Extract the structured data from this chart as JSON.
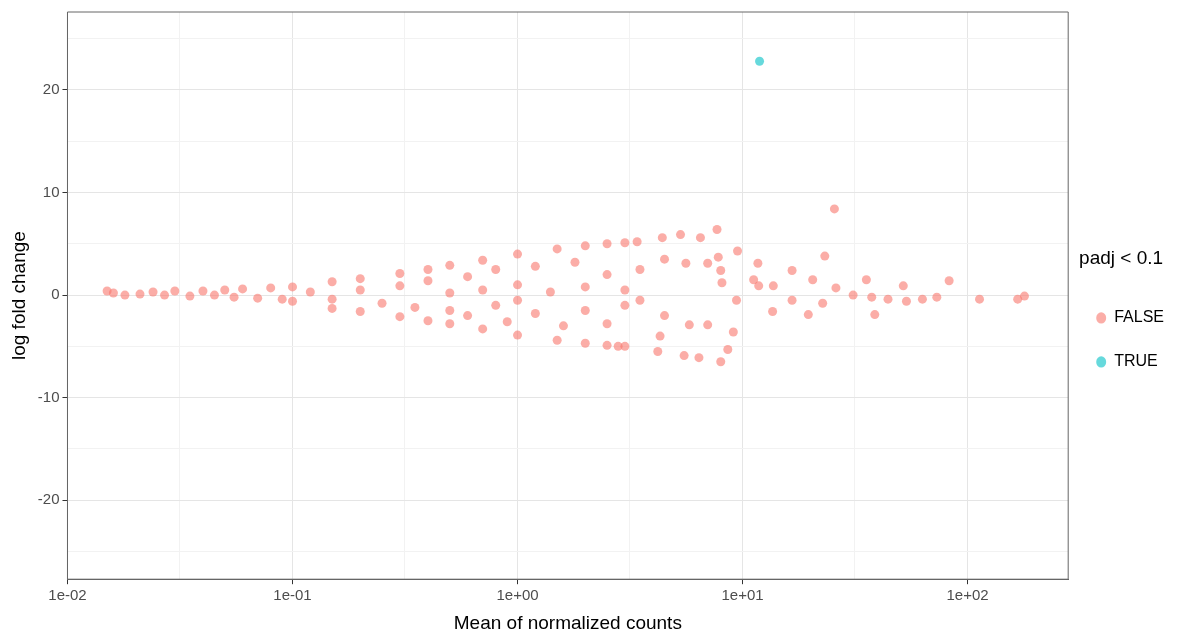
{
  "chart_data": {
    "type": "scatter",
    "xlabel": "Mean of normalized counts",
    "ylabel": "log fold change",
    "legend_title": "padj < 0.1",
    "legend": "right",
    "grid": true,
    "marker": "circle",
    "log": "x",
    "xlim": [
      0.01,
      280
    ],
    "ylim": [
      -27.7,
      27.6
    ],
    "xticks": [
      {
        "value": 0.01,
        "label": "1e-02"
      },
      {
        "value": 0.0316,
        "label": null
      },
      {
        "value": 0.1,
        "label": "1e-01"
      },
      {
        "value": 0.316,
        "label": null
      },
      {
        "value": 1,
        "label": "1e+00"
      },
      {
        "value": 3.16,
        "label": null
      },
      {
        "value": 10,
        "label": "1e+01"
      },
      {
        "value": 31.6,
        "label": null
      },
      {
        "value": 100,
        "label": "1e+02"
      }
    ],
    "yticks": [
      {
        "value": -25,
        "label": null
      },
      -20,
      {
        "value": -15,
        "label": null
      },
      -10,
      {
        "value": -5,
        "label": null
      },
      0,
      {
        "value": 5,
        "label": null
      },
      10,
      {
        "value": 15,
        "label": null
      },
      20,
      {
        "value": 25,
        "label": null
      }
    ],
    "series": [
      {
        "name": "FALSE",
        "color": "#f8766d",
        "x": [
          0.015,
          0.016,
          0.018,
          0.021,
          0.024,
          0.027,
          0.03,
          0.035,
          0.04,
          0.045,
          0.05,
          0.055,
          0.06,
          0.07,
          0.08,
          0.09,
          0.1,
          0.1,
          0.15,
          0.2,
          0.3,
          0.4,
          0.5,
          0.7,
          1,
          1.5,
          2,
          2.5,
          3,
          0.15,
          0.2,
          0.3,
          0.4,
          0.5,
          0.7,
          1,
          1.5,
          2,
          2.5,
          3,
          0.12,
          0.15,
          0.2,
          0.25,
          0.3,
          0.35,
          0.4,
          0.5,
          0.5,
          0.6,
          0.6,
          0.7,
          0.8,
          0.8,
          0.9,
          1,
          1,
          1.2,
          1.2,
          1.4,
          1.6,
          1.8,
          2,
          2,
          2.5,
          2.5,
          3,
          3,
          3.5,
          3.5,
          25.6,
          23.2,
          7.7,
          5.3,
          4.4,
          6.5,
          3.4,
          9.5,
          11.7,
          7.8,
          4.5,
          35.5,
          82.8,
          51.8,
          38.7,
          113,
          179,
          167,
          73,
          63,
          53.5,
          44.3,
          37.5,
          31,
          26,
          22.7,
          19.6,
          20.5,
          16.6,
          13.7,
          13.6,
          9.1,
          8.6,
          8.0,
          6.4,
          5.5,
          4.2,
          4.3,
          2.8,
          5.8,
          7.0,
          4.5,
          8.1,
          9.4,
          5.6,
          7.0,
          8.0,
          16.6,
          11.2,
          11.8
        ],
        "values": [
          0.4,
          0.2,
          0,
          0.1,
          0.3,
          0,
          0.4,
          -0.1,
          0.4,
          0,
          0.5,
          -0.2,
          0.6,
          -0.3,
          0.7,
          -0.4,
          0.8,
          -0.6,
          1.3,
          1.6,
          2.1,
          2.5,
          2.9,
          3.4,
          4,
          4.5,
          4.8,
          5,
          5.1,
          -1.3,
          -1.6,
          -2.1,
          -2.5,
          -2.8,
          -3.3,
          -3.9,
          -4.4,
          -4.7,
          -4.9,
          -5,
          0.3,
          -0.4,
          0.5,
          -0.8,
          0.9,
          -1.2,
          1.4,
          -1.5,
          0.2,
          1.8,
          -2,
          0.5,
          -1,
          2.5,
          -2.6,
          1,
          -0.5,
          2.8,
          -1.8,
          0.3,
          -3,
          3.2,
          0.8,
          -1.5,
          2,
          -2.8,
          0.5,
          -1,
          2.5,
          -0.5,
          8.4,
          3.8,
          6.4,
          5.9,
          5.6,
          5.6,
          5.2,
          4.3,
          3.1,
          3.7,
          3.5,
          1.5,
          1.4,
          0.9,
          -1.9,
          -0.4,
          -0.1,
          -0.4,
          -0.2,
          -0.4,
          -0.6,
          -0.4,
          -0.2,
          0,
          0.7,
          -0.8,
          -1.9,
          1.5,
          2.4,
          0.9,
          -1.6,
          -3.6,
          -5.3,
          -6.5,
          -6.1,
          -5.9,
          -5.5,
          -4.0,
          -5.0,
          -2.9,
          -2.9,
          -2.0,
          1.2,
          -0.5,
          3.1,
          3.1,
          2.4,
          -0.5,
          1.5,
          0.9
        ]
      },
      {
        "name": "TRUE",
        "color": "#00bfc4",
        "x": [
          11.9
        ],
        "values": [
          22.8
        ]
      }
    ]
  }
}
